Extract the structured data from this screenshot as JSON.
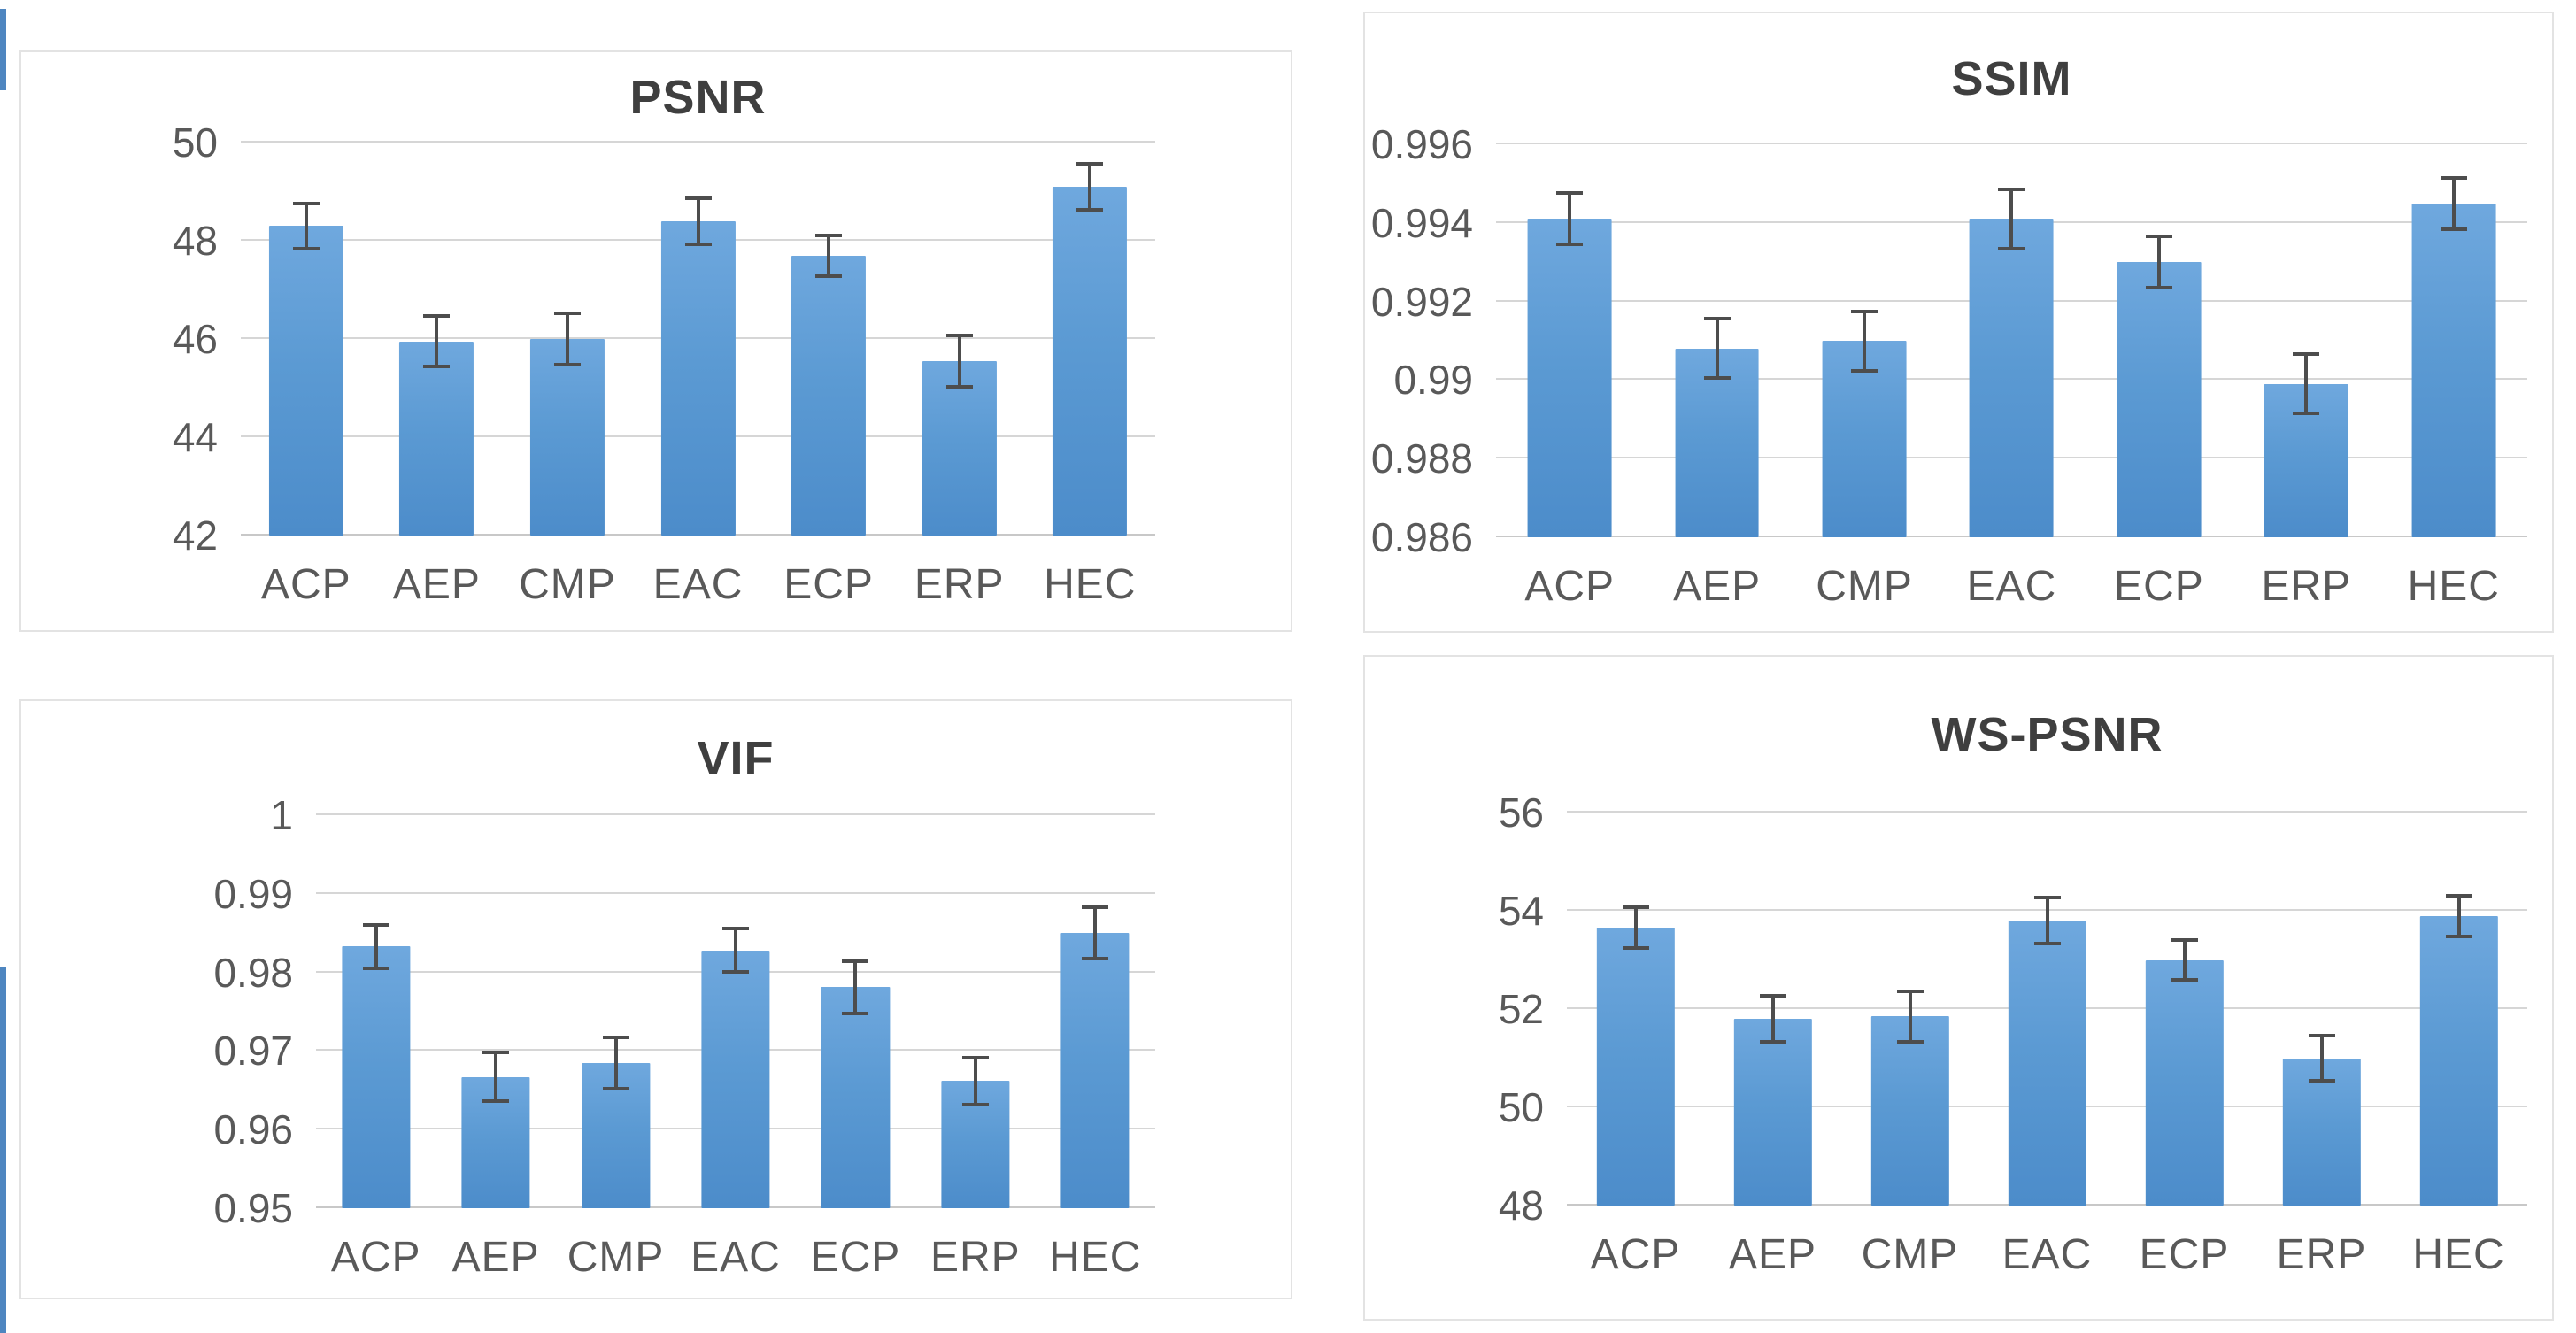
{
  "figure": {
    "description": "2x2 grid of bar charts comparing projection formats on four quality metrics",
    "panel_titles": [
      "PSNR",
      "SSIM",
      "VIF",
      "WS-PSNR"
    ]
  },
  "colors": {
    "bar_top": "#6fa8de",
    "bar_mid": "#5b9ad3",
    "bar_bottom": "#4c8cca",
    "error_color": "#4d4d4d",
    "gridline": "#d6d6d6",
    "axisline": "#c8c8c8",
    "tick_color": "#595959",
    "title_color": "#3f3f3f",
    "panel_border": "#e3e3e3",
    "edge_accent": "#4e86c0"
  },
  "chart_data": [
    {
      "type": "bar",
      "title": "PSNR",
      "categories": [
        "ACP",
        "AEP",
        "CMP",
        "EAC",
        "ECP",
        "ERP",
        "HEC"
      ],
      "values": [
        48.3,
        45.95,
        46.0,
        48.4,
        47.7,
        45.55,
        49.1
      ],
      "errors": [
        0.5,
        0.55,
        0.55,
        0.5,
        0.45,
        0.55,
        0.5
      ],
      "xlabel": "",
      "ylabel": "",
      "ylim": [
        42,
        50
      ],
      "ticks": [
        42,
        44,
        46,
        48,
        50
      ],
      "tick_labels": [
        "42",
        "44",
        "46",
        "48",
        "50"
      ],
      "grid": true,
      "legend": "none",
      "error_bars": true
    },
    {
      "type": "bar",
      "title": "SSIM",
      "categories": [
        "ACP",
        "AEP",
        "CMP",
        "EAC",
        "ECP",
        "ERP",
        "HEC"
      ],
      "values": [
        0.9941,
        0.9908,
        0.991,
        0.9941,
        0.993,
        0.9899,
        0.9945
      ],
      "errors": [
        0.0007,
        0.0008,
        0.0008,
        0.0008,
        0.0007,
        0.0008,
        0.0007
      ],
      "xlabel": "",
      "ylabel": "",
      "ylim": [
        0.986,
        0.996
      ],
      "ticks": [
        0.986,
        0.988,
        0.99,
        0.992,
        0.994,
        0.996
      ],
      "tick_labels": [
        "0.986",
        "0.988",
        "0.99",
        "0.992",
        "0.994",
        "0.996"
      ],
      "grid": true,
      "legend": "none",
      "error_bars": true
    },
    {
      "type": "bar",
      "title": "VIF",
      "categories": [
        "ACP",
        "AEP",
        "CMP",
        "EAC",
        "ECP",
        "ERP",
        "HEC"
      ],
      "values": [
        0.9833,
        0.9667,
        0.9685,
        0.9828,
        0.9781,
        0.9662,
        0.985
      ],
      "errors": [
        0.003,
        0.0033,
        0.0035,
        0.003,
        0.0035,
        0.0032,
        0.0035
      ],
      "xlabel": "",
      "ylabel": "",
      "ylim": [
        0.95,
        1.0
      ],
      "ticks": [
        0.95,
        0.96,
        0.97,
        0.98,
        0.99,
        1.0
      ],
      "tick_labels": [
        "0.95",
        "0.96",
        "0.97",
        "0.98",
        "0.99",
        "1"
      ],
      "grid": true,
      "legend": "none",
      "error_bars": true
    },
    {
      "type": "bar",
      "title": "WS-PSNR",
      "categories": [
        "ACP",
        "AEP",
        "CMP",
        "EAC",
        "ECP",
        "ERP",
        "HEC"
      ],
      "values": [
        53.65,
        51.8,
        51.85,
        53.8,
        53.0,
        51.0,
        53.9
      ],
      "errors": [
        0.45,
        0.5,
        0.55,
        0.5,
        0.45,
        0.5,
        0.45
      ],
      "xlabel": "",
      "ylabel": "",
      "ylim": [
        48,
        56
      ],
      "ticks": [
        48,
        50,
        52,
        54,
        56
      ],
      "tick_labels": [
        "48",
        "50",
        "52",
        "54",
        "56"
      ],
      "grid": true,
      "legend": "none",
      "error_bars": true
    }
  ]
}
